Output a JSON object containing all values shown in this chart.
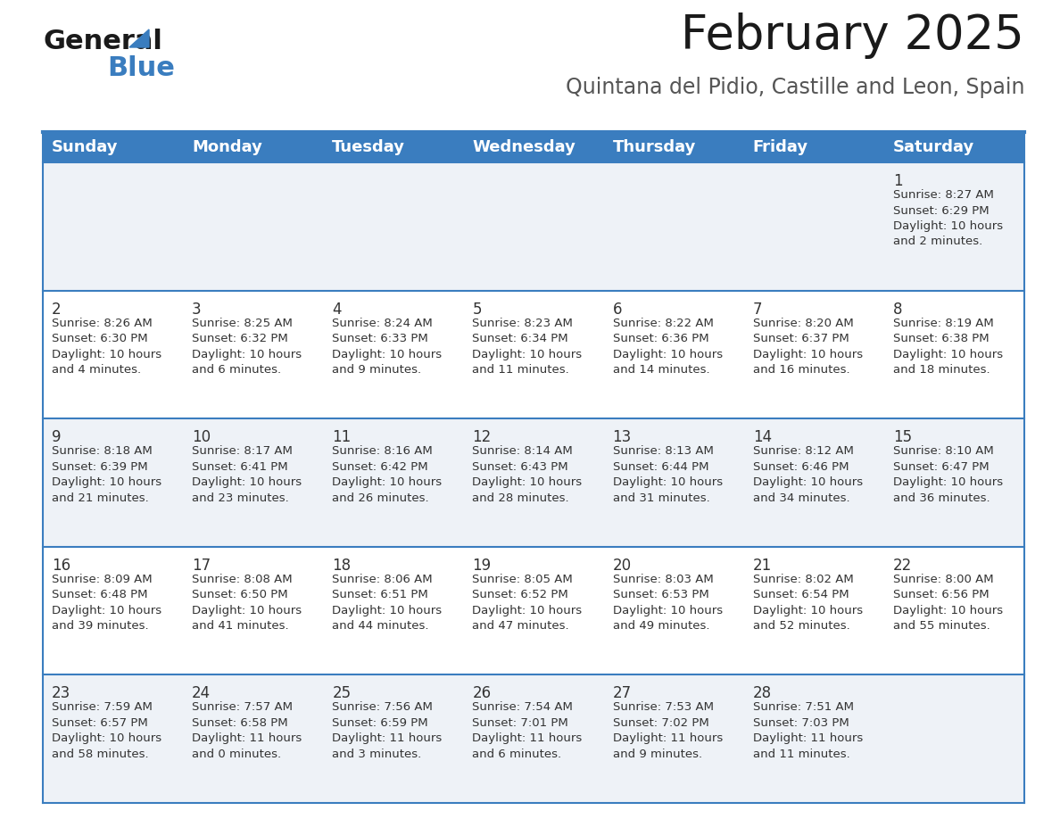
{
  "title": "February 2025",
  "subtitle": "Quintana del Pidio, Castille and Leon, Spain",
  "header_color": "#3a7dbf",
  "header_text_color": "#ffffff",
  "cell_bg_light": "#eef2f7",
  "cell_bg_white": "#ffffff",
  "border_color": "#3a7dbf",
  "text_color": "#333333",
  "days_of_week": [
    "Sunday",
    "Monday",
    "Tuesday",
    "Wednesday",
    "Thursday",
    "Friday",
    "Saturday"
  ],
  "weeks": [
    [
      {
        "day": "",
        "info": ""
      },
      {
        "day": "",
        "info": ""
      },
      {
        "day": "",
        "info": ""
      },
      {
        "day": "",
        "info": ""
      },
      {
        "day": "",
        "info": ""
      },
      {
        "day": "",
        "info": ""
      },
      {
        "day": "1",
        "info": "Sunrise: 8:27 AM\nSunset: 6:29 PM\nDaylight: 10 hours\nand 2 minutes."
      }
    ],
    [
      {
        "day": "2",
        "info": "Sunrise: 8:26 AM\nSunset: 6:30 PM\nDaylight: 10 hours\nand 4 minutes."
      },
      {
        "day": "3",
        "info": "Sunrise: 8:25 AM\nSunset: 6:32 PM\nDaylight: 10 hours\nand 6 minutes."
      },
      {
        "day": "4",
        "info": "Sunrise: 8:24 AM\nSunset: 6:33 PM\nDaylight: 10 hours\nand 9 minutes."
      },
      {
        "day": "5",
        "info": "Sunrise: 8:23 AM\nSunset: 6:34 PM\nDaylight: 10 hours\nand 11 minutes."
      },
      {
        "day": "6",
        "info": "Sunrise: 8:22 AM\nSunset: 6:36 PM\nDaylight: 10 hours\nand 14 minutes."
      },
      {
        "day": "7",
        "info": "Sunrise: 8:20 AM\nSunset: 6:37 PM\nDaylight: 10 hours\nand 16 minutes."
      },
      {
        "day": "8",
        "info": "Sunrise: 8:19 AM\nSunset: 6:38 PM\nDaylight: 10 hours\nand 18 minutes."
      }
    ],
    [
      {
        "day": "9",
        "info": "Sunrise: 8:18 AM\nSunset: 6:39 PM\nDaylight: 10 hours\nand 21 minutes."
      },
      {
        "day": "10",
        "info": "Sunrise: 8:17 AM\nSunset: 6:41 PM\nDaylight: 10 hours\nand 23 minutes."
      },
      {
        "day": "11",
        "info": "Sunrise: 8:16 AM\nSunset: 6:42 PM\nDaylight: 10 hours\nand 26 minutes."
      },
      {
        "day": "12",
        "info": "Sunrise: 8:14 AM\nSunset: 6:43 PM\nDaylight: 10 hours\nand 28 minutes."
      },
      {
        "day": "13",
        "info": "Sunrise: 8:13 AM\nSunset: 6:44 PM\nDaylight: 10 hours\nand 31 minutes."
      },
      {
        "day": "14",
        "info": "Sunrise: 8:12 AM\nSunset: 6:46 PM\nDaylight: 10 hours\nand 34 minutes."
      },
      {
        "day": "15",
        "info": "Sunrise: 8:10 AM\nSunset: 6:47 PM\nDaylight: 10 hours\nand 36 minutes."
      }
    ],
    [
      {
        "day": "16",
        "info": "Sunrise: 8:09 AM\nSunset: 6:48 PM\nDaylight: 10 hours\nand 39 minutes."
      },
      {
        "day": "17",
        "info": "Sunrise: 8:08 AM\nSunset: 6:50 PM\nDaylight: 10 hours\nand 41 minutes."
      },
      {
        "day": "18",
        "info": "Sunrise: 8:06 AM\nSunset: 6:51 PM\nDaylight: 10 hours\nand 44 minutes."
      },
      {
        "day": "19",
        "info": "Sunrise: 8:05 AM\nSunset: 6:52 PM\nDaylight: 10 hours\nand 47 minutes."
      },
      {
        "day": "20",
        "info": "Sunrise: 8:03 AM\nSunset: 6:53 PM\nDaylight: 10 hours\nand 49 minutes."
      },
      {
        "day": "21",
        "info": "Sunrise: 8:02 AM\nSunset: 6:54 PM\nDaylight: 10 hours\nand 52 minutes."
      },
      {
        "day": "22",
        "info": "Sunrise: 8:00 AM\nSunset: 6:56 PM\nDaylight: 10 hours\nand 55 minutes."
      }
    ],
    [
      {
        "day": "23",
        "info": "Sunrise: 7:59 AM\nSunset: 6:57 PM\nDaylight: 10 hours\nand 58 minutes."
      },
      {
        "day": "24",
        "info": "Sunrise: 7:57 AM\nSunset: 6:58 PM\nDaylight: 11 hours\nand 0 minutes."
      },
      {
        "day": "25",
        "info": "Sunrise: 7:56 AM\nSunset: 6:59 PM\nDaylight: 11 hours\nand 3 minutes."
      },
      {
        "day": "26",
        "info": "Sunrise: 7:54 AM\nSunset: 7:01 PM\nDaylight: 11 hours\nand 6 minutes."
      },
      {
        "day": "27",
        "info": "Sunrise: 7:53 AM\nSunset: 7:02 PM\nDaylight: 11 hours\nand 9 minutes."
      },
      {
        "day": "28",
        "info": "Sunrise: 7:51 AM\nSunset: 7:03 PM\nDaylight: 11 hours\nand 11 minutes."
      },
      {
        "day": "",
        "info": ""
      }
    ]
  ],
  "logo_text_general": "General",
  "logo_text_blue": "Blue",
  "title_fontsize": 38,
  "subtitle_fontsize": 17,
  "header_fontsize": 13,
  "day_fontsize": 12,
  "info_fontsize": 9.5
}
